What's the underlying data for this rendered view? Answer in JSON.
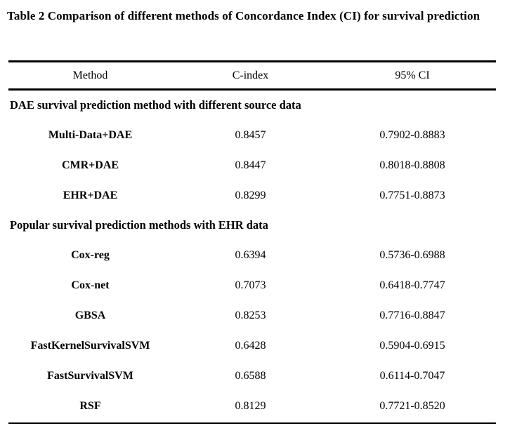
{
  "title": "Table 2 Comparison of different methods of Concordance Index (CI) for survival prediction",
  "table": {
    "columns": [
      "Method",
      "C-index",
      "95% CI"
    ],
    "sections": [
      {
        "header": "DAE survival prediction method with different source data",
        "rows": [
          {
            "method": "Multi-Data+DAE",
            "c_index": "0.8457",
            "ci": "0.7902-0.8883"
          },
          {
            "method": "CMR+DAE",
            "c_index": "0.8447",
            "ci": "0.8018-0.8808"
          },
          {
            "method": "EHR+DAE",
            "c_index": "0.8299",
            "ci": "0.7751-0.8873"
          }
        ]
      },
      {
        "header": "Popular survival prediction methods with EHR data",
        "rows": [
          {
            "method": "Cox-reg",
            "c_index": "0.6394",
            "ci": "0.5736-0.6988"
          },
          {
            "method": "Cox-net",
            "c_index": "0.7073",
            "ci": "0.6418-0.7747"
          },
          {
            "method": "GBSA",
            "c_index": "0.8253",
            "ci": "0.7716-0.8847"
          },
          {
            "method": "FastKernelSurvivalSVM",
            "c_index": "0.6428",
            "ci": "0.5904-0.6915"
          },
          {
            "method": "FastSurvivalSVM",
            "c_index": "0.6588",
            "ci": "0.6114-0.7047"
          },
          {
            "method": "RSF",
            "c_index": "0.8129",
            "ci": "0.7721-0.8520"
          }
        ]
      }
    ]
  }
}
